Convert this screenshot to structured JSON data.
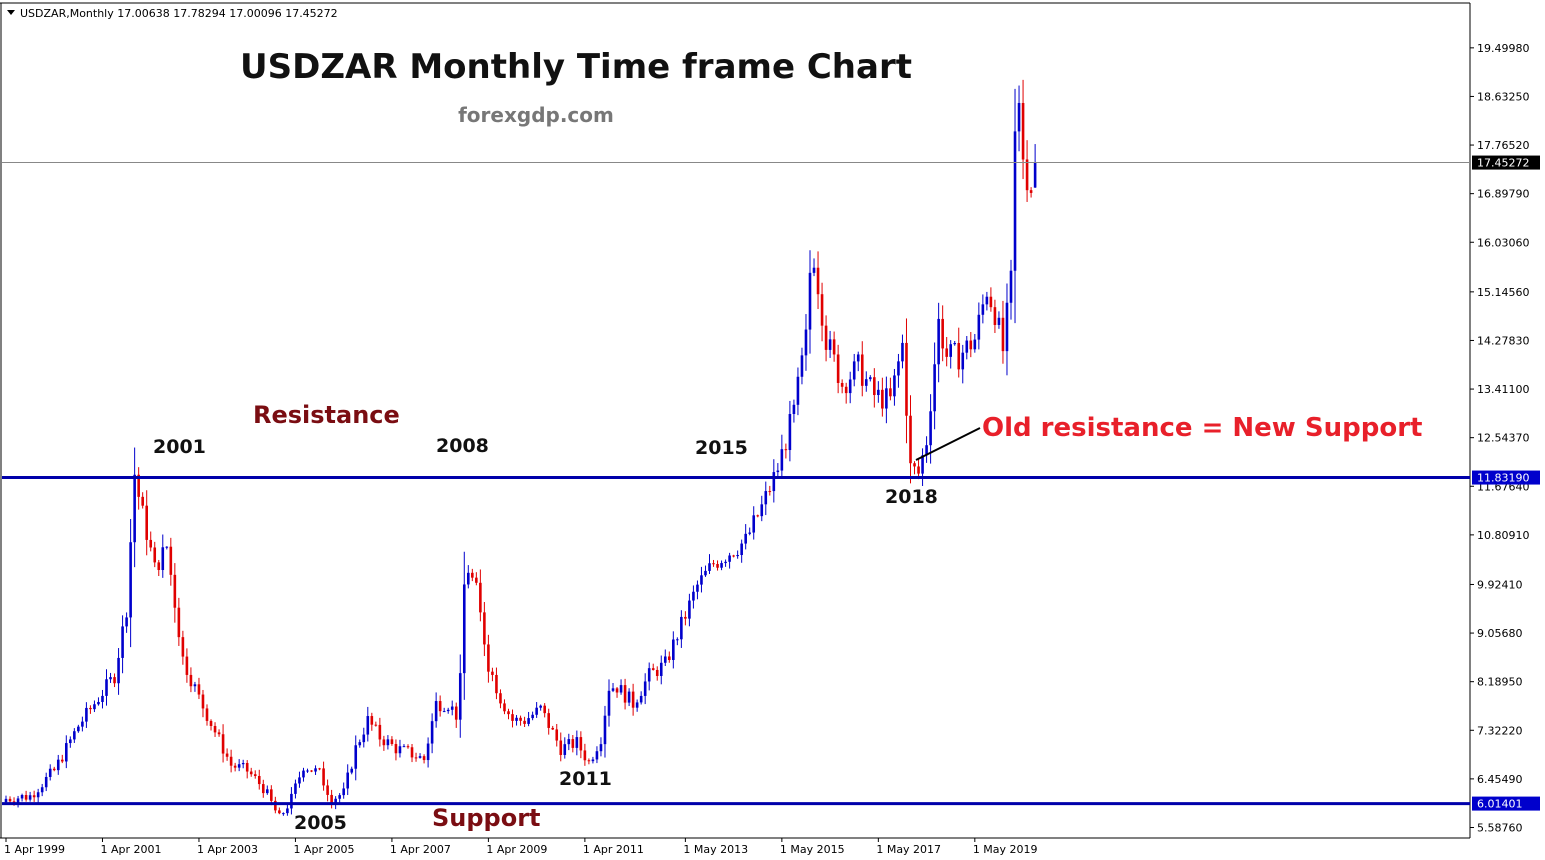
{
  "header": {
    "symbol_info": "USDZAR,Monthly  17.00638 17.78294 17.00096 17.45272"
  },
  "title": "USDZAR Monthly Time frame Chart",
  "subtitle": "forexgdp.com",
  "colors": {
    "bull": "#0000cc",
    "bear": "#e00000",
    "line": "#0000aa",
    "tag_bg_price": "#000000",
    "tag_bg_level": "#0000cc",
    "axis": "#000000"
  },
  "chart_data": {
    "type": "candlestick",
    "timeframe": "Monthly",
    "symbol": "USDZAR",
    "ylim": [
      5.4,
      20.3
    ],
    "y_ticks": [
      19.4998,
      18.6325,
      17.7652,
      16.8979,
      16.0306,
      15.1456,
      14.2783,
      13.411,
      12.5437,
      11.6764,
      10.8091,
      9.9241,
      9.0568,
      8.1895,
      7.3222,
      6.4549,
      5.5876
    ],
    "y_tick_labels": [
      "19.49980",
      "18.63250",
      "17.76520",
      "16.89790",
      "16.03060",
      "15.14560",
      "14.27830",
      "13.41100",
      "12.54370",
      "11.67640",
      "10.80910",
      "9.92410",
      "9.05680",
      "8.18950",
      "7.32220",
      "6.45490",
      "5.58760"
    ],
    "x_ticks": [
      "1 Apr 1999",
      "1 Apr 2001",
      "1 Apr 2003",
      "1 Apr 2005",
      "1 Apr 2007",
      "1 Apr 2009",
      "1 Apr 2011",
      "1 May 2013",
      "1 May 2015",
      "1 May 2017",
      "1 May 2019"
    ],
    "x_start": "1999-04",
    "anchors": [
      [
        "1999-04",
        6.1
      ],
      [
        "1999-10",
        6.15
      ],
      [
        "2000-04",
        6.6
      ],
      [
        "2000-10",
        7.4
      ],
      [
        "2001-04",
        8.0
      ],
      [
        "2001-07",
        8.3
      ],
      [
        "2001-10",
        9.5
      ],
      [
        "2001-12",
        11.9
      ],
      [
        "2002-01",
        11.5
      ],
      [
        "2002-05",
        10.2
      ],
      [
        "2002-08",
        10.6
      ],
      [
        "2002-12",
        8.6
      ],
      [
        "2003-04",
        7.9
      ],
      [
        "2003-08",
        7.3
      ],
      [
        "2003-12",
        6.7
      ],
      [
        "2004-04",
        6.6
      ],
      [
        "2004-08",
        6.3
      ],
      [
        "2004-12",
        5.75
      ],
      [
        "2005-03",
        6.1
      ],
      [
        "2005-06",
        6.7
      ],
      [
        "2005-10",
        6.55
      ],
      [
        "2006-01",
        6.1
      ],
      [
        "2006-04",
        6.2
      ],
      [
        "2006-07",
        7.0
      ],
      [
        "2006-10",
        7.5
      ],
      [
        "2007-01",
        7.2
      ],
      [
        "2007-05",
        7.0
      ],
      [
        "2007-09",
        6.9
      ],
      [
        "2007-12",
        6.8
      ],
      [
        "2008-03",
        7.8
      ],
      [
        "2008-06",
        7.8
      ],
      [
        "2008-08",
        7.6
      ],
      [
        "2008-09",
        8.2
      ],
      [
        "2008-10",
        9.9
      ],
      [
        "2008-11",
        10.2
      ],
      [
        "2009-01",
        9.8
      ],
      [
        "2009-04",
        8.5
      ],
      [
        "2009-07",
        7.9
      ],
      [
        "2009-10",
        7.5
      ],
      [
        "2010-01",
        7.5
      ],
      [
        "2010-05",
        7.7
      ],
      [
        "2010-10",
        7.0
      ],
      [
        "2011-02",
        7.1
      ],
      [
        "2011-05",
        6.75
      ],
      [
        "2011-08",
        7.2
      ],
      [
        "2011-10",
        8.1
      ],
      [
        "2011-12",
        8.1
      ],
      [
        "2012-04",
        7.8
      ],
      [
        "2012-08",
        8.3
      ],
      [
        "2012-12",
        8.5
      ],
      [
        "2013-04",
        9.2
      ],
      [
        "2013-08",
        9.9
      ],
      [
        "2013-12",
        10.3
      ],
      [
        "2014-04",
        10.5
      ],
      [
        "2014-08",
        10.7
      ],
      [
        "2014-12",
        11.3
      ],
      [
        "2015-04",
        12.0
      ],
      [
        "2015-08",
        13.0
      ],
      [
        "2015-11",
        14.3
      ],
      [
        "2015-12",
        15.5
      ],
      [
        "2016-01",
        15.8
      ],
      [
        "2016-04",
        14.3
      ],
      [
        "2016-08",
        13.5
      ],
      [
        "2016-12",
        13.8
      ],
      [
        "2017-04",
        13.3
      ],
      [
        "2017-08",
        13.2
      ],
      [
        "2017-11",
        14.2
      ],
      [
        "2018-01",
        12.0
      ],
      [
        "2018-03",
        11.9
      ],
      [
        "2018-05",
        12.5
      ],
      [
        "2018-08",
        14.6
      ],
      [
        "2018-10",
        14.0
      ],
      [
        "2019-01",
        14.0
      ],
      [
        "2019-05",
        14.3
      ],
      [
        "2019-08",
        15.2
      ],
      [
        "2019-10",
        14.8
      ],
      [
        "2019-12",
        14.1
      ],
      [
        "2020-02",
        15.3
      ],
      [
        "2020-03",
        17.9
      ],
      [
        "2020-04",
        18.4
      ],
      [
        "2020-05",
        17.6
      ],
      [
        "2020-06",
        17.2
      ],
      [
        "2020-07",
        17.0
      ],
      [
        "2020-08",
        17.45
      ]
    ],
    "last_candle": {
      "open": 17.00638,
      "high": 17.78294,
      "low": 17.00096,
      "close": 17.45272
    },
    "horizontal_lines": [
      {
        "name": "resistance",
        "value": 11.8319,
        "label": "11.83190"
      },
      {
        "name": "support",
        "value": 6.01401,
        "label": "6.01401"
      }
    ],
    "current_price": {
      "value": 17.45272,
      "label": "17.45272"
    }
  },
  "annotations": {
    "resistance": "Resistance",
    "support": "Support",
    "old_new": "Old resistance = New Support",
    "years": [
      "2001",
      "2008",
      "2015",
      "2018",
      "2005",
      "2011"
    ]
  }
}
